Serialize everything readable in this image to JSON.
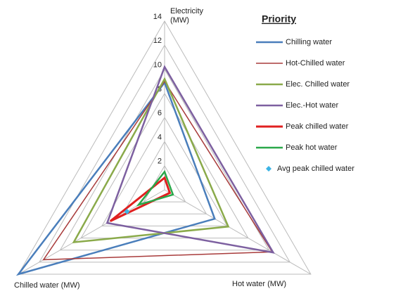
{
  "chart_data": {
    "type": "radar",
    "categories": [
      "Electricity (MW)",
      "Hot water (MW)",
      "Chilled water (MW)"
    ],
    "ylim": [
      0,
      14
    ],
    "yticks": [
      2,
      4,
      6,
      8,
      10,
      12,
      14
    ],
    "grid": true,
    "legend_title": "Priority",
    "series": [
      {
        "name": "Chilling water",
        "color": "#4a7ebb",
        "values": [
          8.9,
          4.8,
          14
        ]
      },
      {
        "name": "Hot-Chilled water",
        "color": "#a83b3b",
        "values": [
          9,
          10.3,
          11.6
        ]
      },
      {
        "name": "Elec. Chilled water",
        "color": "#8aaa4a",
        "values": [
          9.2,
          6.1,
          8.7
        ]
      },
      {
        "name": "Elec.-Hot water",
        "color": "#7d60a0",
        "values": [
          10.2,
          10.4,
          5.5
        ]
      },
      {
        "name": "Peak chilled water",
        "color": "#e02020",
        "values": [
          1,
          0.5,
          5.2
        ]
      },
      {
        "name": "Peak hot water",
        "color": "#2aa84a",
        "values": [
          1.5,
          0.8,
          2.5
        ]
      },
      {
        "name": "Avg peak chilled water",
        "color": "#3cb4e5",
        "marker": "diamond",
        "values": [
          null,
          null,
          3.6
        ]
      }
    ]
  }
}
